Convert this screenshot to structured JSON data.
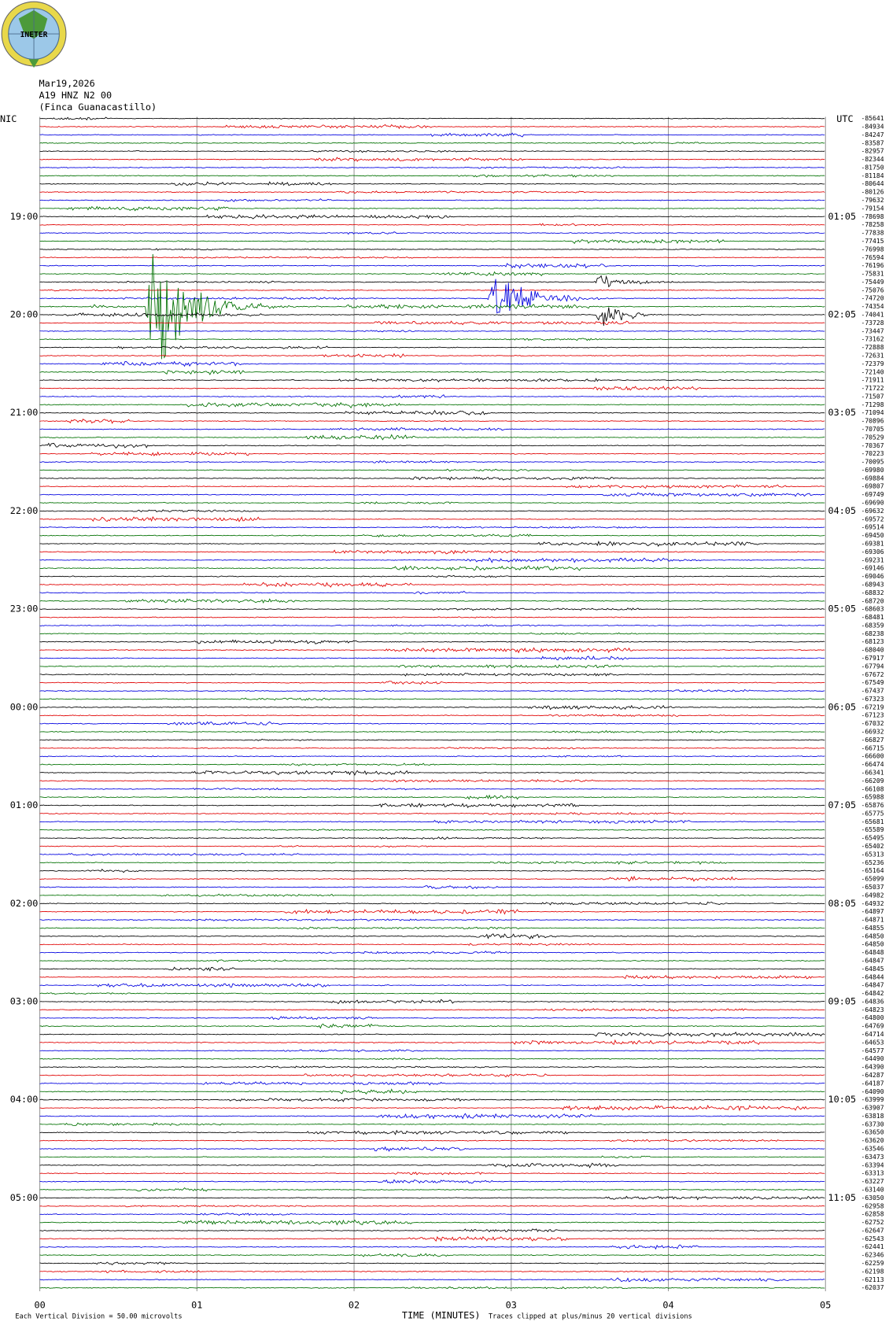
{
  "header": {
    "logo": "INETER",
    "date": "Mar19,2026",
    "station": "A19 HNZ N2 00",
    "site": "(Finca Guanacastillo)",
    "left_zone": "NIC",
    "right_zone": "UTC"
  },
  "left_hours": [
    "19:00",
    "20:00",
    "21:00",
    "22:00",
    "23:00",
    "00:00",
    "01:00",
    "02:00",
    "03:00",
    "04:00",
    "05:00"
  ],
  "right_hours": [
    "01:05",
    "02:05",
    "03:05",
    "04:05",
    "05:05",
    "06:05",
    "07:05",
    "08:05",
    "09:05",
    "10:05",
    "11:05"
  ],
  "trace_colors": [
    "#000000",
    "#e00000",
    "#0000e0",
    "#007000"
  ],
  "trace_offsets": [
    -85641,
    -84934,
    -84247,
    -83587,
    -82957,
    -82344,
    -81750,
    -81184,
    -80644,
    -80126,
    -79632,
    -79154,
    -78698,
    -78258,
    -77838,
    -77415,
    -76998,
    -76594,
    -76196,
    -75831,
    -75449,
    -75076,
    -74720,
    -74354,
    -74041,
    -73728,
    -73447,
    -73162,
    -72888,
    -72631,
    -72379,
    -72140,
    -71911,
    -71722,
    -71507,
    -71298,
    -71094,
    -70896,
    -70705,
    -70529,
    -70367,
    -70223,
    -70095,
    -69980,
    -69884,
    -69807,
    -69749,
    -69690,
    -69632,
    -69572,
    -69514,
    -69450,
    -69381,
    -69306,
    -69231,
    -69146,
    -69046,
    -68943,
    -68832,
    -68720,
    -68603,
    -68481,
    -68359,
    -68238,
    -68123,
    -68040,
    -67917,
    -67794,
    -67672,
    -67549,
    -67437,
    -67323,
    -67219,
    -67123,
    -67032,
    -66932,
    -66827,
    -66715,
    -66600,
    -66474,
    -66341,
    -66209,
    -66108,
    -65988,
    -65876,
    -65775,
    -65681,
    -65589,
    -65495,
    -65402,
    -65313,
    -65236,
    -65164,
    -65099,
    -65037,
    -64982,
    -64932,
    -64897,
    -64871,
    -64855,
    -64850,
    -64850,
    -64848,
    -64847,
    -64845,
    -64844,
    -64847,
    -64842,
    -64836,
    -64823,
    -64800,
    -64769,
    -64714,
    -64653,
    -64577,
    -64490,
    -64390,
    -64287,
    -64187,
    -64090,
    -63999,
    -63907,
    -63818,
    -63730,
    -63650,
    -63620,
    -63546,
    -63473,
    -63394,
    -63313,
    -63227,
    -63140,
    -63050,
    -62958,
    -62858,
    -62752,
    -62647,
    -62543,
    -62441,
    -62346,
    -62259,
    -62198,
    -62113,
    -62037
  ],
  "x_labels": [
    "00",
    "01",
    "02",
    "03",
    "04",
    "05"
  ],
  "x_title": "TIME (MINUTES)",
  "footer_left": "Each Vertical Division =   50.00 microvolts",
  "footer_right": "Traces clipped at plus/minus 20 vertical divisions"
}
